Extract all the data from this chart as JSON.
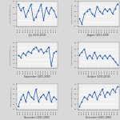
{
  "months": [
    "July (2015-2030)",
    "August (2015-2030)",
    "September (2015-2030)",
    "October (2015-2030)",
    "November (2015-2030)",
    "December (2015-2030)"
  ],
  "month_keys": [
    "July",
    "August",
    "September",
    "October",
    "November",
    "December"
  ],
  "years": [
    "2015",
    "2016",
    "2017",
    "2018",
    "2019",
    "2020",
    "2021",
    "2022",
    "2023",
    "2024",
    "2025",
    "2026",
    "2027",
    "2028",
    "2029",
    "2030"
  ],
  "data": {
    "July": [
      0.1,
      -0.1,
      0.0,
      -0.3,
      -0.1,
      0.1,
      -0.4,
      -0.3,
      -0.1,
      0.1,
      -0.4,
      0.0,
      -0.2,
      0.0,
      -0.1,
      -0.3
    ],
    "August": [
      -0.1,
      -0.3,
      0.1,
      0.2,
      0.3,
      0.1,
      0.0,
      0.4,
      0.2,
      0.1,
      0.3,
      0.2,
      0.3,
      0.1,
      0.3,
      0.5
    ],
    "September": [
      0.2,
      0.1,
      0.3,
      0.2,
      0.4,
      0.3,
      0.5,
      0.6,
      0.4,
      0.5,
      0.3,
      0.4,
      0.6,
      -0.3,
      0.3,
      0.4
    ],
    "October": [
      0.4,
      0.5,
      0.6,
      0.3,
      0.4,
      0.3,
      0.5,
      0.3,
      0.4,
      0.3,
      0.4,
      0.3,
      0.4,
      0.3,
      0.2,
      0.1
    ],
    "November": [
      0.1,
      0.4,
      0.6,
      0.3,
      0.7,
      0.5,
      0.4,
      0.8,
      0.3,
      0.5,
      0.6,
      0.4,
      0.7,
      0.3,
      0.5,
      0.4
    ],
    "December": [
      0.1,
      0.3,
      0.5,
      0.4,
      0.6,
      0.5,
      0.7,
      0.4,
      0.6,
      0.8,
      0.5,
      0.7,
      0.6,
      0.8,
      0.7,
      0.9
    ]
  },
  "ylims": {
    "July": [
      -0.6,
      0.2
    ],
    "August": [
      -0.4,
      0.6
    ],
    "September": [
      -0.4,
      0.8
    ],
    "October": [
      0.0,
      0.8
    ],
    "November": [
      0.0,
      1.0
    ],
    "December": [
      0.0,
      1.0
    ]
  },
  "yticks": {
    "July": [
      -0.6,
      -0.4,
      -0.2,
      0.0,
      0.2
    ],
    "August": [
      -0.4,
      -0.2,
      0.0,
      0.2,
      0.4,
      0.6
    ],
    "September": [
      -0.4,
      -0.2,
      0.0,
      0.2,
      0.4,
      0.6,
      0.8
    ],
    "October": [
      0.0,
      0.2,
      0.4,
      0.6,
      0.8
    ],
    "November": [
      0.0,
      0.2,
      0.4,
      0.6,
      0.8,
      1.0
    ],
    "December": [
      0.0,
      0.2,
      0.4,
      0.6,
      0.8,
      1.0
    ]
  },
  "line_color": "#2255aa",
  "marker_color": "#2255aa",
  "bg_color": "#d9d9d9",
  "plot_bg_color": "#f0f0f0",
  "grid_color": "#ffffff",
  "ylabel": "Minimum Temperature (°C)"
}
